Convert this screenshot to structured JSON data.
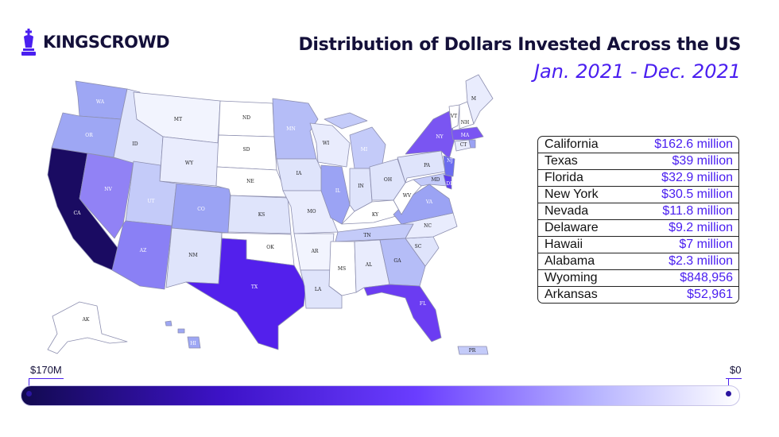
{
  "brand": {
    "name": "KINGSCROWD",
    "logo_icon": "chess-king-icon"
  },
  "title": "Distribution of Dollars Invested Across the US",
  "subtitle": "Jan. 2021 - Dec. 2021",
  "colors": {
    "dark_navy": "#14103a",
    "accent_purple": "#4a1ff0",
    "darkest": "#120a50",
    "light": "#dfe4fb"
  },
  "top_states": [
    {
      "state": "California",
      "amount": "$162.6 million"
    },
    {
      "state": "Texas",
      "amount": "$39 million"
    },
    {
      "state": "Florida",
      "amount": "$32.9 million"
    },
    {
      "state": "New York",
      "amount": "$30.5 million"
    },
    {
      "state": "Nevada",
      "amount": "$11.8 million"
    },
    {
      "state": "Delaware",
      "amount": "$9.2 million"
    },
    {
      "state": "Hawaii",
      "amount": "$7 million"
    },
    {
      "state": "Alabama",
      "amount": "$2.3 million"
    },
    {
      "state": "Wyoming",
      "amount": "$848,956"
    },
    {
      "state": "Arkansas",
      "amount": "$52,961"
    }
  ],
  "legend": {
    "max_label": "$170M",
    "min_label": "$0"
  },
  "state_labels": {
    "WA": "WA",
    "OR": "OR",
    "CA": "CA",
    "NV": "NV",
    "ID": "ID",
    "MT": "MT",
    "WY": "WY",
    "UT": "UT",
    "AZ": "AZ",
    "CO": "CO",
    "NM": "NM",
    "ND": "ND",
    "SD": "SD",
    "NE": "NE",
    "KS": "KS",
    "OK": "OK",
    "TX": "TX",
    "MN": "MN",
    "IA": "IA",
    "MO": "MO",
    "AR": "AR",
    "LA": "LA",
    "WI": "WI",
    "IL": "IL",
    "MS": "MS",
    "MI": "MI",
    "IN": "IN",
    "KY": "KY",
    "TN": "TN",
    "AL": "AL",
    "OH": "OH",
    "GA": "GA",
    "FL": "FL",
    "SC": "SC",
    "NC": "NC",
    "VA": "VA",
    "WV": "WV",
    "PA": "PA",
    "NY": "NY",
    "NJ": "NJ",
    "MD": "MD",
    "DE": "DE",
    "CT": "CT",
    "MA": "MA",
    "VT": "VT",
    "NH": "NH",
    "M": "M",
    "AK": "AK",
    "HI": "HI",
    "PR": "PR"
  }
}
